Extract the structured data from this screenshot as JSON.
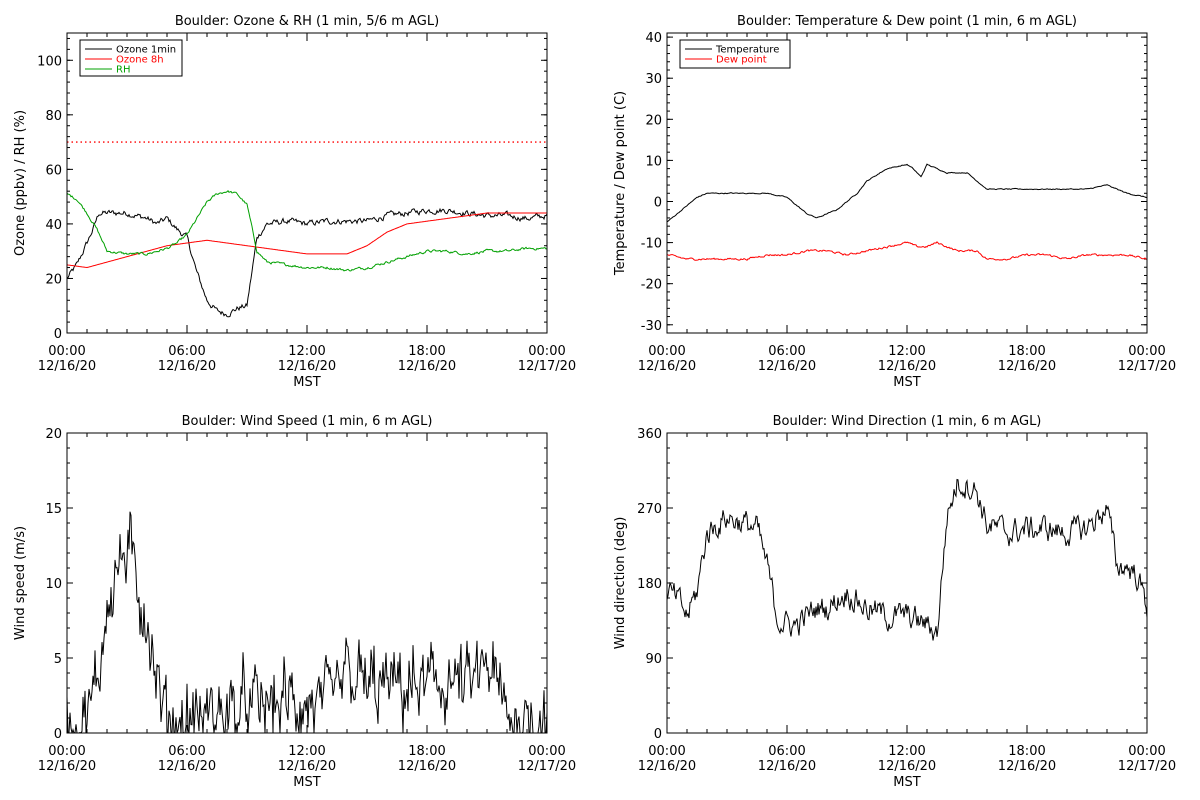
{
  "chart_data": [
    {
      "type": "line",
      "title": "Boulder: Ozone & RH (1 min, 5/6 m AGL)",
      "xlabel": "MST",
      "ylabel": "Ozone (ppbv) / RH (%)",
      "xlim": [
        0,
        24
      ],
      "ylim": [
        0,
        110
      ],
      "yticks": [
        0,
        20,
        40,
        60,
        80,
        100
      ],
      "xtick_labels": [
        [
          "00:00",
          "12/16/20"
        ],
        [
          "06:00",
          "12/16/20"
        ],
        [
          "12:00",
          "12/16/20"
        ],
        [
          "18:00",
          "12/16/20"
        ],
        [
          "00:00",
          "12/17/20"
        ]
      ],
      "legend": "top-left",
      "reference_lines": [
        {
          "y": 70,
          "color": "#ff0000",
          "style": "dotted"
        }
      ],
      "series": [
        {
          "name": "Ozone 1min",
          "color": "#000000",
          "noise": 1.8,
          "x": [
            0,
            0.5,
            1,
            1.3,
            1.6,
            2,
            3,
            4,
            4.5,
            5,
            5.5,
            6,
            6.5,
            7,
            7.5,
            8,
            8.5,
            9,
            9.5,
            10,
            11,
            12,
            13,
            14,
            15,
            16,
            17,
            18,
            19,
            20,
            21,
            22,
            23,
            24
          ],
          "y": [
            20,
            25,
            33,
            38,
            44,
            44,
            44,
            42,
            40,
            42,
            38,
            35,
            22,
            12,
            8,
            7,
            9,
            10,
            35,
            40,
            41,
            40,
            41,
            41,
            41,
            43,
            44,
            45,
            45,
            44,
            43,
            43,
            42,
            43
          ]
        },
        {
          "name": "Ozone 8h",
          "color": "#ff0000",
          "noise": 0,
          "x": [
            0,
            1,
            2,
            3,
            4,
            5,
            6,
            7,
            8,
            9,
            10,
            11,
            12,
            13,
            14,
            15,
            16,
            17,
            18,
            19,
            20,
            21,
            22,
            23,
            24
          ],
          "y": [
            25,
            24,
            26,
            28,
            30,
            32,
            33,
            34,
            33,
            32,
            31,
            30,
            29,
            29,
            29,
            32,
            37,
            40,
            41,
            42,
            43,
            44,
            44,
            44,
            44
          ]
        },
        {
          "name": "RH",
          "color": "#00a000",
          "noise": 0.8,
          "x": [
            0,
            0.5,
            1,
            1.5,
            2,
            3,
            4,
            5,
            5.5,
            6,
            6.5,
            7,
            7.5,
            8,
            8.5,
            9,
            9.5,
            10,
            11,
            12,
            13,
            14,
            15,
            16,
            17,
            18,
            19,
            20,
            21,
            22,
            23,
            24
          ],
          "y": [
            51,
            49,
            44,
            38,
            30,
            29,
            29,
            31,
            33,
            36,
            42,
            48,
            51,
            52,
            51,
            47,
            30,
            26,
            25,
            24,
            24,
            23,
            24,
            26,
            28,
            30,
            30,
            29,
            30,
            30,
            31,
            31
          ]
        }
      ]
    },
    {
      "type": "line",
      "title": "Boulder: Temperature & Dew point (1 min, 6 m AGL)",
      "xlabel": "MST",
      "ylabel": "Temperature / Dew point (C)",
      "xlim": [
        0,
        24
      ],
      "ylim": [
        -32,
        41
      ],
      "yticks": [
        -30,
        -20,
        -10,
        0,
        10,
        20,
        30,
        40
      ],
      "xtick_labels": [
        [
          "00:00",
          "12/16/20"
        ],
        [
          "06:00",
          "12/16/20"
        ],
        [
          "12:00",
          "12/16/20"
        ],
        [
          "18:00",
          "12/16/20"
        ],
        [
          "00:00",
          "12/17/20"
        ]
      ],
      "legend": "top-left",
      "series": [
        {
          "name": "Temperature",
          "color": "#000000",
          "noise": 0.2,
          "x": [
            0,
            0.5,
            1,
            1.5,
            2,
            3,
            4,
            5,
            6,
            6.5,
            7,
            7.5,
            8,
            8.5,
            9,
            9.5,
            10,
            11,
            12,
            12.3,
            12.7,
            13,
            13.5,
            14,
            15,
            15.5,
            16,
            17,
            18,
            19,
            20,
            21,
            22,
            22.5,
            23,
            24
          ],
          "y": [
            -5,
            -3,
            -1,
            1,
            2,
            2,
            2,
            2,
            1,
            -1,
            -3,
            -4,
            -3,
            -2,
            0,
            2,
            5,
            8,
            9,
            8,
            6,
            9,
            8,
            7,
            7,
            5,
            3,
            3,
            3,
            3,
            3,
            3,
            4,
            3,
            2,
            1
          ]
        },
        {
          "name": "Dew point",
          "color": "#ff0000",
          "noise": 0.4,
          "x": [
            0,
            1,
            2,
            3,
            4,
            5,
            6,
            7,
            8,
            9,
            10,
            11,
            12,
            12.5,
            13,
            13.5,
            14,
            14.5,
            15,
            15.5,
            16,
            17,
            18,
            19,
            20,
            21,
            22,
            23,
            24
          ],
          "y": [
            -13,
            -14,
            -14,
            -14,
            -14,
            -13,
            -13,
            -12,
            -12,
            -13,
            -12,
            -11,
            -10,
            -11,
            -11,
            -10,
            -11,
            -12,
            -12,
            -12,
            -14,
            -14,
            -13,
            -13,
            -14,
            -13,
            -13,
            -13,
            -14
          ]
        }
      ]
    },
    {
      "type": "line",
      "title": "Boulder: Wind Speed (1 min, 6 m AGL)",
      "xlabel": "MST",
      "ylabel": "Wind speed (m/s)",
      "xlim": [
        0,
        24
      ],
      "ylim": [
        0,
        20
      ],
      "yticks": [
        0,
        5,
        10,
        15,
        20
      ],
      "xtick_labels": [
        [
          "00:00",
          "12/16/20"
        ],
        [
          "06:00",
          "12/16/20"
        ],
        [
          "12:00",
          "12/16/20"
        ],
        [
          "18:00",
          "12/16/20"
        ],
        [
          "00:00",
          "12/17/20"
        ]
      ],
      "series": [
        {
          "name": "",
          "color": "#000000",
          "noise": 3.2,
          "mode": "spiky",
          "x": [
            0,
            1,
            1.5,
            2,
            2.5,
            3,
            3.5,
            4,
            4.3,
            4.7,
            5,
            6,
            7,
            8,
            9,
            10,
            11,
            12,
            13,
            13.5,
            14,
            14.5,
            15,
            16,
            17,
            18,
            19,
            20,
            20.5,
            21,
            21.5,
            22,
            23,
            24
          ],
          "y": [
            0.8,
            1,
            3,
            9,
            11,
            12,
            10,
            8,
            5,
            2,
            0.8,
            0.8,
            1.2,
            1.5,
            1.5,
            1.8,
            2,
            1.8,
            1.5,
            2.5,
            4,
            3.5,
            3,
            3,
            3,
            3,
            3.5,
            3,
            3.5,
            4.5,
            3,
            1,
            1,
            1
          ]
        }
      ]
    },
    {
      "type": "line",
      "title": "Boulder: Wind Direction (1 min, 6 m AGL)",
      "xlabel": "MST",
      "ylabel": "Wind direction (deg)",
      "xlim": [
        0,
        24
      ],
      "ylim": [
        0,
        360
      ],
      "yticks": [
        0,
        90,
        180,
        270,
        360
      ],
      "xtick_labels": [
        [
          "00:00",
          "12/16/20"
        ],
        [
          "06:00",
          "12/16/20"
        ],
        [
          "12:00",
          "12/16/20"
        ],
        [
          "18:00",
          "12/16/20"
        ],
        [
          "00:00",
          "12/17/20"
        ]
      ],
      "series": [
        {
          "name": "",
          "color": "#000000",
          "noise": 25,
          "x": [
            0,
            0.5,
            1,
            1.5,
            2,
            3,
            4,
            4.5,
            5,
            5.5,
            6,
            6.5,
            7,
            7.5,
            8,
            9,
            10,
            11,
            12,
            13,
            13.5,
            14,
            14.5,
            15,
            15.5,
            16,
            17,
            18,
            19,
            20,
            21,
            21.5,
            22,
            22.5,
            23,
            23.5,
            24
          ],
          "y": [
            170,
            160,
            140,
            170,
            240,
            260,
            250,
            245,
            200,
            140,
            130,
            130,
            140,
            150,
            150,
            170,
            150,
            140,
            140,
            130,
            120,
            260,
            300,
            300,
            290,
            250,
            240,
            245,
            245,
            240,
            245,
            260,
            270,
            200,
            200,
            190,
            150
          ]
        }
      ]
    }
  ]
}
